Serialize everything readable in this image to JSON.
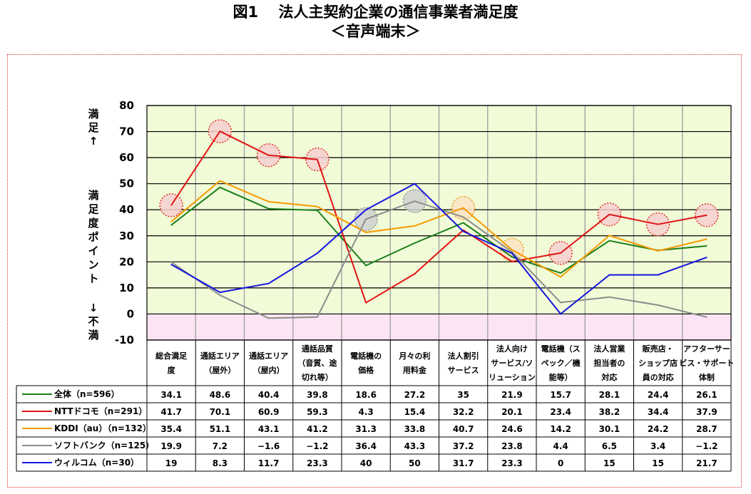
{
  "title": {
    "line1": "図1　 法人主契約企業の通信事業者満足度",
    "line2": "＜音声端末＞"
  },
  "colors": {
    "plot_bg_positive": "#f1fbd7",
    "plot_bg_negative": "#fbe4f3",
    "grid": "#a8a8a8",
    "highlight_fill": "#f6cfcf",
    "highlight_stroke": "#e03030",
    "highlight_gray_fill": "#d0d0d0",
    "highlight_gray_stroke": "#909090",
    "highlight_orange_fill": "#fbe3c5",
    "highlight_orange_stroke": "#f09a20"
  },
  "chart_data": {
    "type": "line",
    "title": "図1　 法人主契約企業の通信事業者満足度 ＜音声端末＞",
    "ylabel_top": [
      "満",
      "足",
      "↑"
    ],
    "ylabel_middle": [
      "満",
      "足",
      "度",
      "ポ",
      "イ",
      "ン",
      "ト"
    ],
    "ylabel_bottom": [
      "↓",
      "不",
      "満"
    ],
    "ylim": [
      -10,
      80
    ],
    "yticks": [
      -10,
      0,
      10,
      20,
      30,
      40,
      50,
      60,
      70,
      80
    ],
    "grid": true,
    "categories": [
      [
        "総合満足",
        "度"
      ],
      [
        "通話エリア",
        "（屋外）"
      ],
      [
        "通話エリア",
        "（屋内）"
      ],
      [
        "通話品質",
        "（音質、途",
        "切れ等）"
      ],
      [
        "電話機の",
        "価格"
      ],
      [
        "月々の利",
        "用料金"
      ],
      [
        "法人割引",
        "サービス"
      ],
      [
        "法人向け",
        "サービス/ソ",
        "リューション"
      ],
      [
        "電話機（ス",
        "ペック／機",
        "能等）"
      ],
      [
        "法人営業",
        "担当者の",
        "対応"
      ],
      [
        "販売店・",
        "ショップ店",
        "員の対応"
      ],
      [
        "アフターサー",
        "ビス・サポート",
        "体制"
      ]
    ],
    "series": [
      {
        "name": "全体（n=596）",
        "color": "#1a7f1a",
        "values": [
          34.1,
          48.6,
          40.4,
          39.8,
          18.6,
          27.2,
          35,
          21.9,
          15.7,
          28.1,
          24.4,
          26.1
        ],
        "labels": [
          "34.1",
          "48.6",
          "40.4",
          "39.8",
          "18.6",
          "27.2",
          "35",
          "21.9",
          "15.7",
          "28.1",
          "24.4",
          "26.1"
        ]
      },
      {
        "name": "NTTドコモ（n=291）",
        "color": "#e01414",
        "values": [
          41.7,
          70.1,
          60.9,
          59.3,
          4.3,
          15.4,
          32.2,
          20.1,
          23.4,
          38.2,
          34.4,
          37.9
        ],
        "labels": [
          "41.7",
          "70.1",
          "60.9",
          "59.3",
          "4.3",
          "15.4",
          "32.2",
          "20.1",
          "23.4",
          "38.2",
          "34.4",
          "37.9"
        ]
      },
      {
        "name": "KDDI（au）（n=132）",
        "color": "#f59a00",
        "values": [
          35.4,
          51.1,
          43.1,
          41.2,
          31.3,
          33.8,
          40.7,
          24.6,
          14.2,
          30.1,
          24.2,
          28.7
        ],
        "labels": [
          "35.4",
          "51.1",
          "43.1",
          "41.2",
          "31.3",
          "33.8",
          "40.7",
          "24.6",
          "14.2",
          "30.1",
          "24.2",
          "28.7"
        ]
      },
      {
        "name": "ソフトバンク（n=125）",
        "color": "#8c8c8c",
        "values": [
          19.9,
          7.2,
          -1.6,
          -1.2,
          36.4,
          43.3,
          37.2,
          23.8,
          4.4,
          6.5,
          3.4,
          -1.2
        ],
        "labels": [
          "19.9",
          "7.2",
          "−1.6",
          "−1.2",
          "36.4",
          "43.3",
          "37.2",
          "23.8",
          "4.4",
          "6.5",
          "3.4",
          "−1.2"
        ]
      },
      {
        "name": "ウィルコム（n=30）",
        "color": "#1414e0",
        "values": [
          19,
          8.3,
          11.7,
          23.3,
          40,
          50,
          31.7,
          23.3,
          0,
          15,
          15,
          21.7
        ],
        "labels": [
          "19",
          "8.3",
          "11.7",
          "23.3",
          "40",
          "50",
          "31.7",
          "23.3",
          "0",
          "15",
          "15",
          "21.7"
        ]
      }
    ],
    "highlights": [
      {
        "series": 1,
        "index": 0,
        "style": "red"
      },
      {
        "series": 1,
        "index": 1,
        "style": "red"
      },
      {
        "series": 1,
        "index": 2,
        "style": "red"
      },
      {
        "series": 1,
        "index": 3,
        "style": "red"
      },
      {
        "series": 3,
        "index": 4,
        "style": "gray"
      },
      {
        "series": 3,
        "index": 5,
        "style": "gray"
      },
      {
        "series": 2,
        "index": 6,
        "style": "orange"
      },
      {
        "series": 2,
        "index": 7,
        "style": "orange"
      },
      {
        "series": 1,
        "index": 8,
        "style": "red"
      },
      {
        "series": 1,
        "index": 9,
        "style": "red"
      },
      {
        "series": 1,
        "index": 10,
        "style": "red"
      },
      {
        "series": 1,
        "index": 11,
        "style": "red"
      }
    ]
  }
}
